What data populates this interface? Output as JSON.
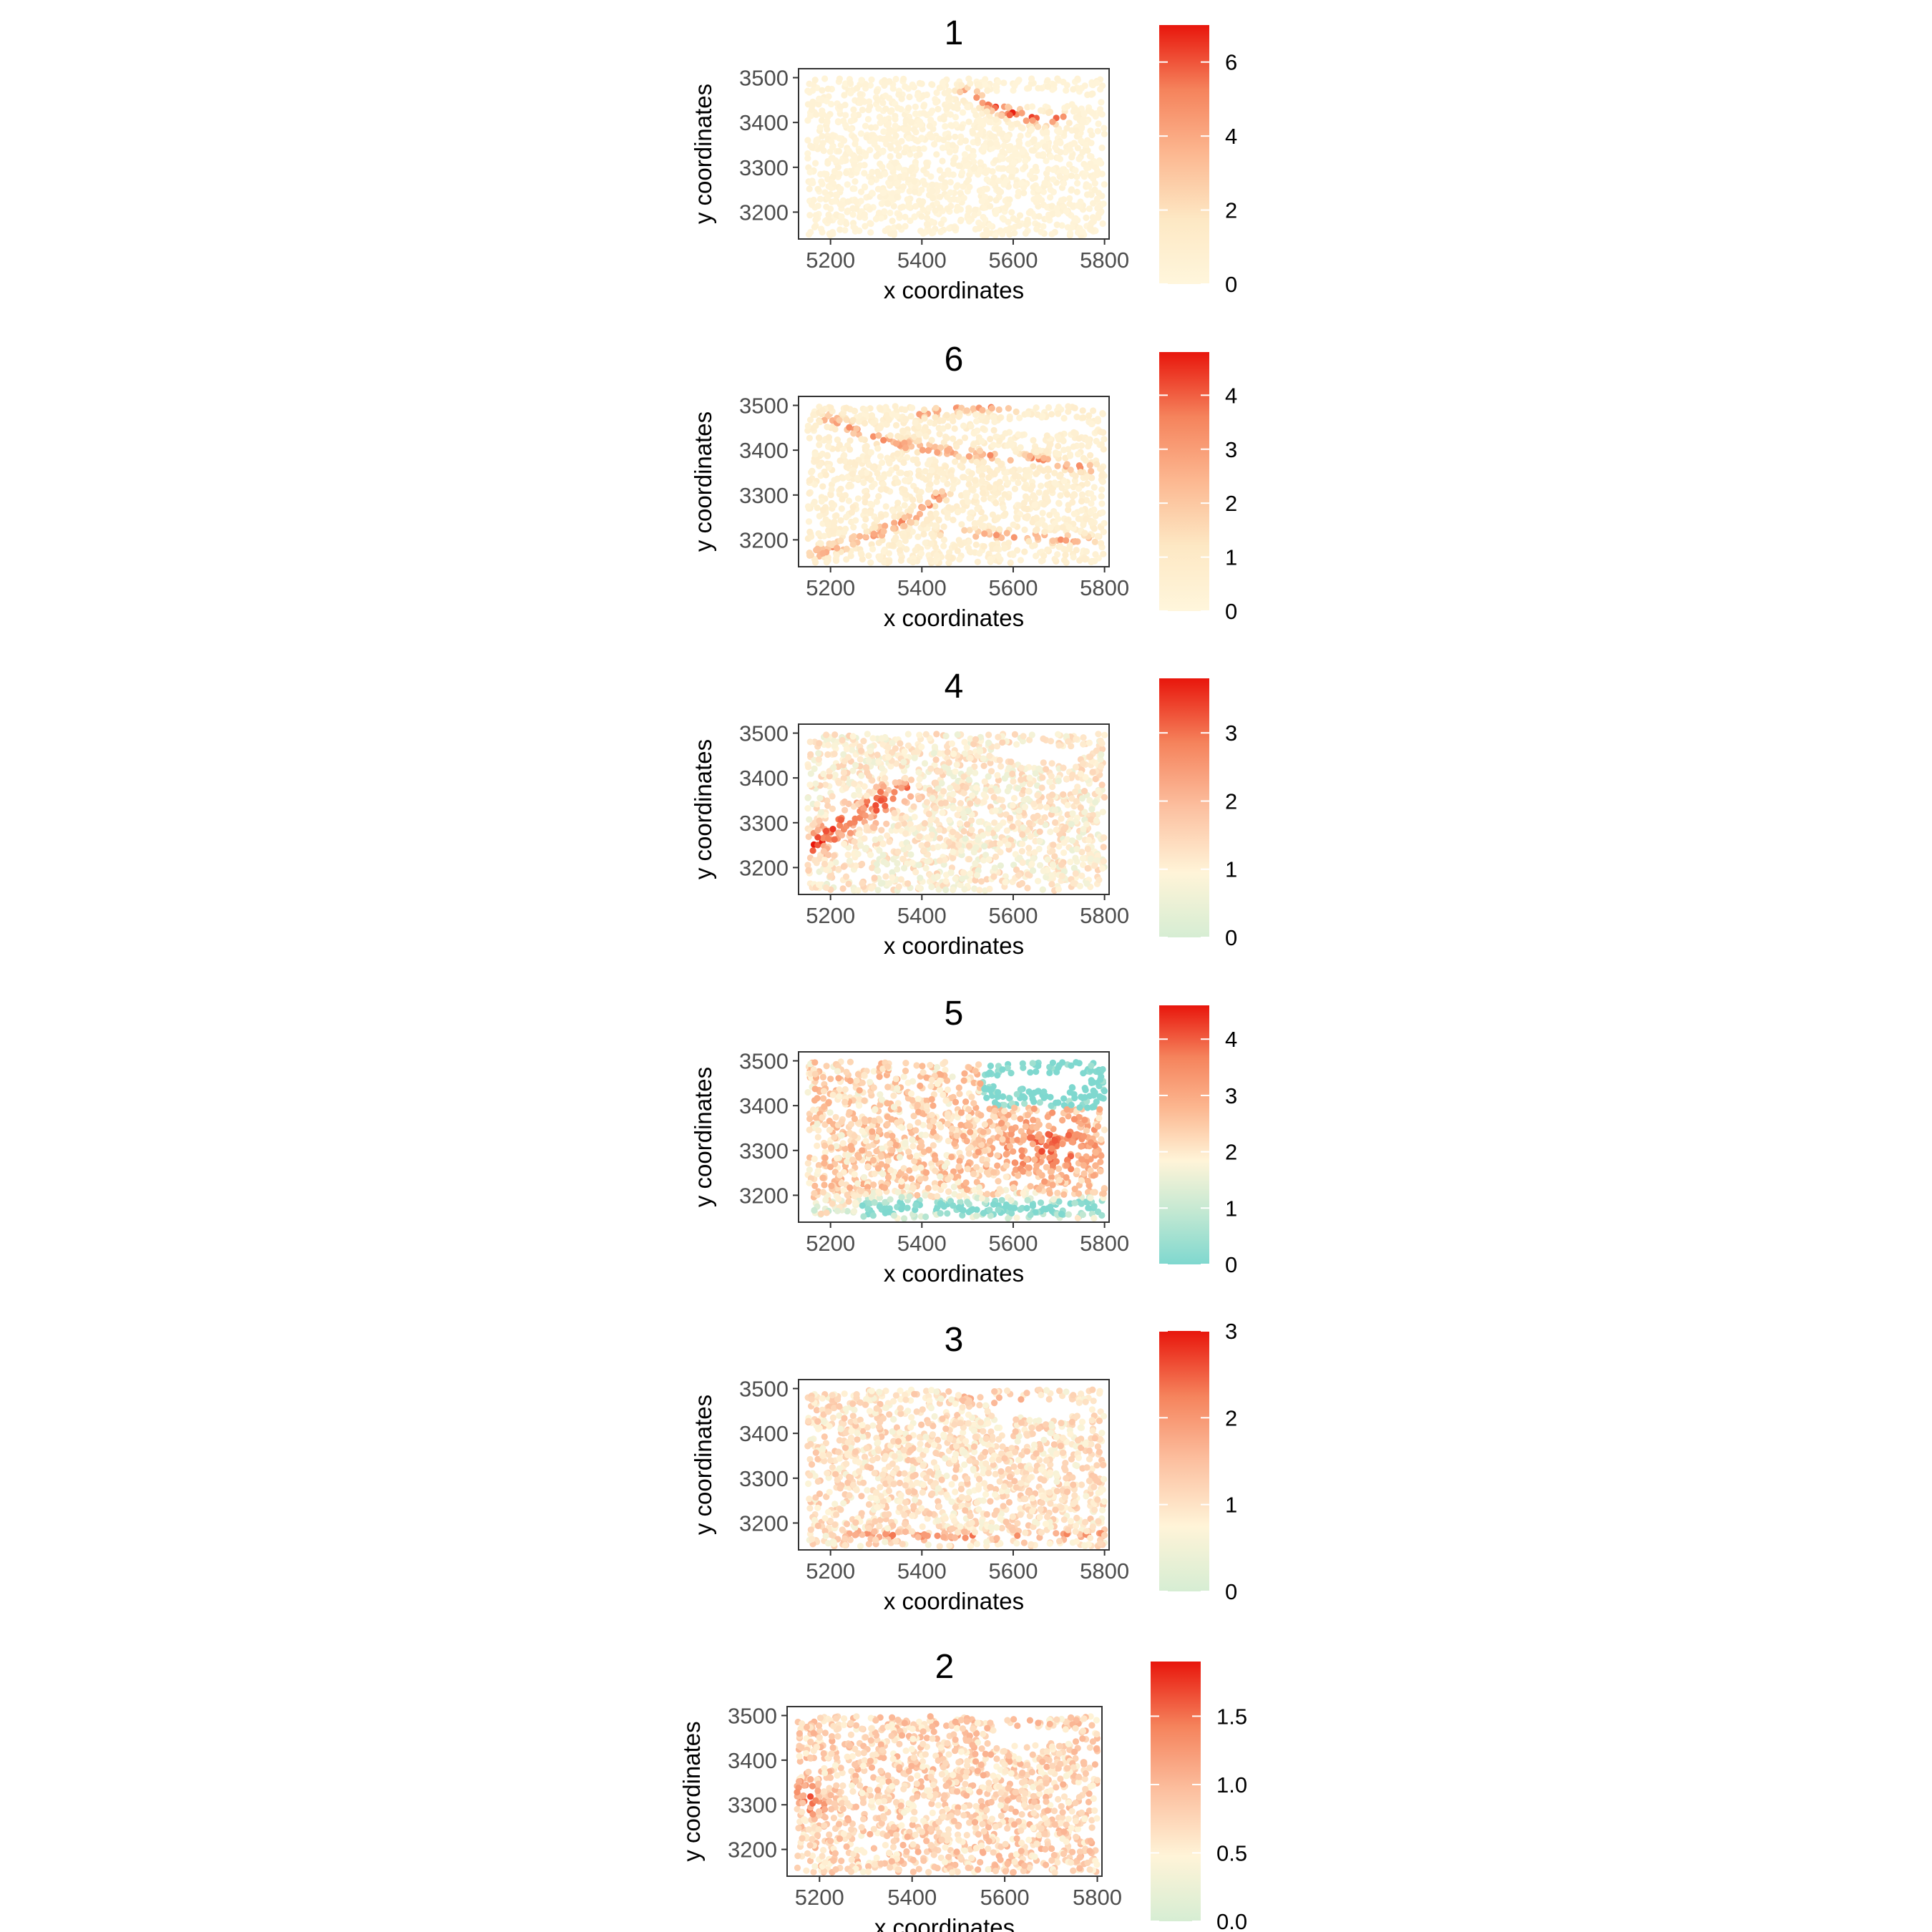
{
  "colors": {
    "background": "#ffffff",
    "frame": "#333333",
    "low_cream": "#fff5dc",
    "low_mint": "#d6edd3",
    "low_teal": "#7fd8cf",
    "mid_peach": "#fcc0a0",
    "high_red": "#e8160c"
  },
  "chart_data": [
    {
      "type": "scatter",
      "title": "1",
      "xlabel": "x coordinates",
      "ylabel": "y coordinates",
      "xlim": [
        5130,
        5810
      ],
      "ylim": [
        3140,
        3520
      ],
      "xticks": [
        "5200",
        "5400",
        "5600",
        "5800"
      ],
      "yticks": [
        "3200",
        "3300",
        "3400",
        "3500"
      ],
      "grid": false,
      "legend": {
        "position": "right",
        "type": "colorbar",
        "min": 0,
        "max": 7.0,
        "breaks": [
          0,
          2,
          4,
          6
        ],
        "break_labels": [
          "0",
          "2",
          "4",
          "6"
        ],
        "palette": [
          "#fff6dc",
          "#fde8c4",
          "#fcb891",
          "#f5835c",
          "#e8160c"
        ]
      },
      "description_of_pattern": "cream background; high values (up to ~7) along a narrow band near x 5500-5680, y 3410-3460"
    },
    {
      "type": "scatter",
      "title": "6",
      "xlabel": "x coordinates",
      "ylabel": "y coordinates",
      "xlim": [
        5130,
        5810
      ],
      "ylim": [
        3140,
        3520
      ],
      "xticks": [
        "5200",
        "5400",
        "5600",
        "5800"
      ],
      "yticks": [
        "3200",
        "3300",
        "3400",
        "3500"
      ],
      "grid": false,
      "legend": {
        "position": "right",
        "type": "colorbar",
        "min": 0,
        "max": 4.8,
        "breaks": [
          0,
          1,
          2,
          3,
          4
        ],
        "break_labels": [
          "0",
          "1",
          "2",
          "3",
          "4"
        ],
        "palette": [
          "#fff6dc",
          "#fde8c4",
          "#fcb891",
          "#f5835c",
          "#e8160c"
        ]
      }
    },
    {
      "type": "scatter",
      "title": "4",
      "xlabel": "x coordinates",
      "ylabel": "y coordinates",
      "xlim": [
        5130,
        5810
      ],
      "ylim": [
        3140,
        3520
      ],
      "xticks": [
        "5200",
        "5400",
        "5600",
        "5800"
      ],
      "yticks": [
        "3200",
        "3300",
        "3400",
        "3500"
      ],
      "grid": false,
      "legend": {
        "position": "right",
        "type": "colorbar",
        "min": 0,
        "max": 3.8,
        "breaks": [
          0,
          1,
          2,
          3
        ],
        "break_labels": [
          "0",
          "1",
          "2",
          "3"
        ],
        "palette": [
          "#d6edd3",
          "#fff4d8",
          "#fcc0a0",
          "#f5835c",
          "#e8160c"
        ]
      }
    },
    {
      "type": "scatter",
      "title": "5",
      "xlabel": "x coordinates",
      "ylabel": "y coordinates",
      "xlim": [
        5130,
        5810
      ],
      "ylim": [
        3140,
        3520
      ],
      "xticks": [
        "5200",
        "5400",
        "5600",
        "5800"
      ],
      "yticks": [
        "3200",
        "3300",
        "3400",
        "3500"
      ],
      "grid": false,
      "legend": {
        "position": "right",
        "type": "colorbar",
        "min": 0,
        "max": 4.6,
        "breaks": [
          0,
          1,
          2,
          3,
          4
        ],
        "break_labels": [
          "0",
          "1",
          "2",
          "3",
          "4"
        ],
        "palette": [
          "#7fd8cf",
          "#c2e8d2",
          "#fff4d8",
          "#fcb891",
          "#f5835c",
          "#e8160c"
        ]
      }
    },
    {
      "type": "scatter",
      "title": "3",
      "xlabel": "x coordinates",
      "ylabel": "y coordinates",
      "xlim": [
        5130,
        5810
      ],
      "ylim": [
        3140,
        3520
      ],
      "xticks": [
        "5200",
        "5400",
        "5600",
        "5800"
      ],
      "yticks": [
        "3200",
        "3300",
        "3400",
        "3500"
      ],
      "grid": false,
      "legend": {
        "position": "right",
        "type": "colorbar",
        "min": 0,
        "max": 3.0,
        "breaks": [
          0,
          1,
          2,
          3
        ],
        "break_labels": [
          "0",
          "1",
          "2",
          "3"
        ],
        "palette": [
          "#d6edd3",
          "#fff4d8",
          "#fcc0a0",
          "#f5835c",
          "#e8160c"
        ]
      }
    },
    {
      "type": "scatter",
      "title": "2",
      "xlabel": "x coordinates",
      "ylabel": "y coordinates",
      "xlim": [
        5130,
        5810
      ],
      "ylim": [
        3140,
        3520
      ],
      "xticks": [
        "5200",
        "5400",
        "5600",
        "5800"
      ],
      "yticks": [
        "3200",
        "3300",
        "3400",
        "3500"
      ],
      "grid": false,
      "legend": {
        "position": "right",
        "type": "colorbar",
        "min": 0,
        "max": 1.9,
        "breaks": [
          0,
          0.5,
          1.0,
          1.5
        ],
        "break_labels": [
          "0.0",
          "0.5",
          "1.0",
          "1.5"
        ],
        "palette": [
          "#d6edd3",
          "#fff4d8",
          "#fcc0a0",
          "#f5835c",
          "#e8160c"
        ]
      }
    }
  ]
}
